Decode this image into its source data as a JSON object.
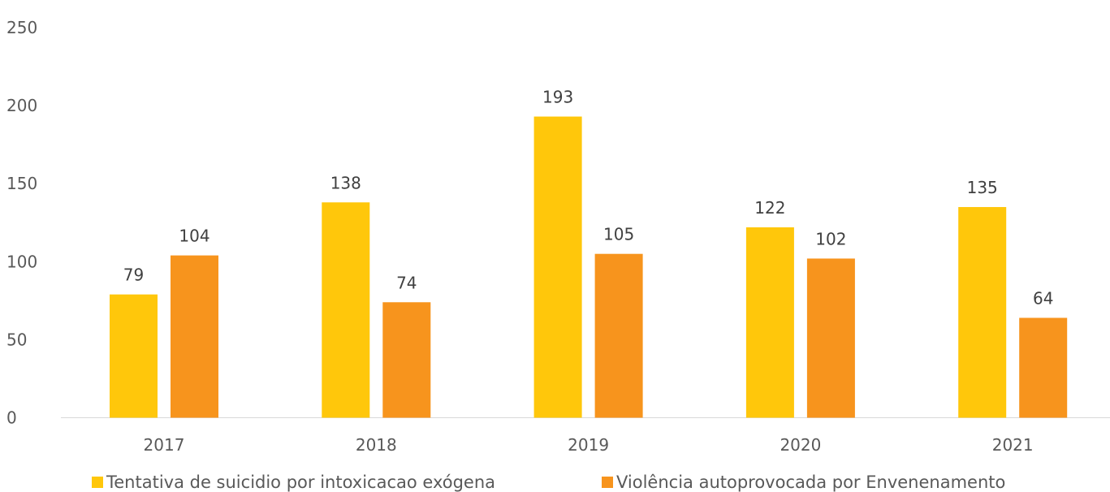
{
  "chart_data": {
    "type": "bar",
    "title": "",
    "xlabel": "",
    "ylabel": "",
    "categories": [
      "2017",
      "2018",
      "2019",
      "2020",
      "2021"
    ],
    "ylim": [
      0,
      250
    ],
    "yticks": [
      0,
      50,
      100,
      150,
      200,
      250
    ],
    "grid": false,
    "legend_position": "bottom",
    "series": [
      {
        "name": "Tentativa de suicidio por intoxicacao exógena",
        "values": [
          79,
          138,
          193,
          122,
          135
        ],
        "color": "#ffc70b"
      },
      {
        "name": "Violência autoprovocada por Envenenamento",
        "values": [
          104,
          74,
          105,
          102,
          64
        ],
        "color": "#f7941d"
      }
    ]
  }
}
